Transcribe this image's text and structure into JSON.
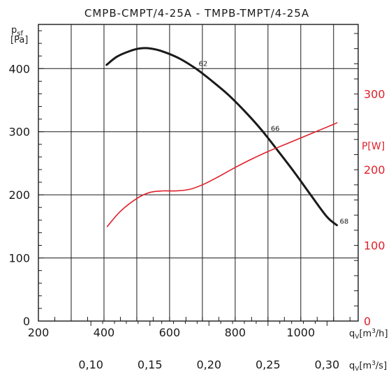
{
  "chart_data": {
    "type": "line",
    "title": "CMPB-CMPT/4-25A - TMPB-TMPT/4-25A",
    "x_axis": {
      "label_parts": [
        "q",
        "V",
        "[m",
        "3",
        "/h]"
      ],
      "ticks": [
        200,
        400,
        600,
        800,
        1000
      ],
      "range": [
        200,
        1175
      ]
    },
    "x2_axis": {
      "label_parts": [
        "q",
        "V",
        "[m",
        "3",
        "/s]"
      ],
      "ticks": [
        0.1,
        0.15,
        0.2,
        0.25,
        0.3
      ],
      "tick_labels": [
        "0,10",
        "0,15",
        "0,20",
        "0,25",
        "0,30"
      ]
    },
    "y_axis": {
      "label_parts": [
        "p",
        "sf"
      ],
      "unit": "[Pa]",
      "ticks": [
        0,
        100,
        200,
        300,
        400
      ],
      "range": [
        0,
        470
      ]
    },
    "y2_axis": {
      "label": "P[W]",
      "ticks": [
        0,
        100,
        200,
        300
      ],
      "range": [
        0,
        392
      ],
      "color": "#e0202a"
    },
    "series": [
      {
        "axis": "y",
        "color": "#1a1a1a",
        "points": [
          [
            408,
            406
          ],
          [
            440,
            419
          ],
          [
            480,
            428
          ],
          [
            510,
            432
          ],
          [
            540,
            432
          ],
          [
            580,
            427
          ],
          [
            630,
            416
          ],
          [
            680,
            400
          ],
          [
            730,
            380
          ],
          [
            780,
            358
          ],
          [
            830,
            332
          ],
          [
            880,
            303
          ],
          [
            930,
            270
          ],
          [
            980,
            236
          ],
          [
            1030,
            200
          ],
          [
            1080,
            165
          ],
          [
            1110,
            152
          ]
        ]
      },
      {
        "axis": "y2",
        "color": "#e0202a",
        "points": [
          [
            410,
            125
          ],
          [
            450,
            145
          ],
          [
            500,
            162
          ],
          [
            540,
            170
          ],
          [
            580,
            172
          ],
          [
            620,
            172
          ],
          [
            660,
            174
          ],
          [
            700,
            180
          ],
          [
            750,
            191
          ],
          [
            800,
            203
          ],
          [
            850,
            214
          ],
          [
            900,
            224
          ],
          [
            950,
            233
          ],
          [
            1000,
            242
          ],
          [
            1050,
            251
          ],
          [
            1100,
            260
          ],
          [
            1110,
            262
          ]
        ]
      }
    ],
    "annotations": [
      {
        "text": "62",
        "x": 680,
        "y": 402
      },
      {
        "text": "66",
        "x": 900,
        "y": 299
      },
      {
        "text": "68",
        "x": 1110,
        "y": 152
      }
    ],
    "grid": true
  }
}
